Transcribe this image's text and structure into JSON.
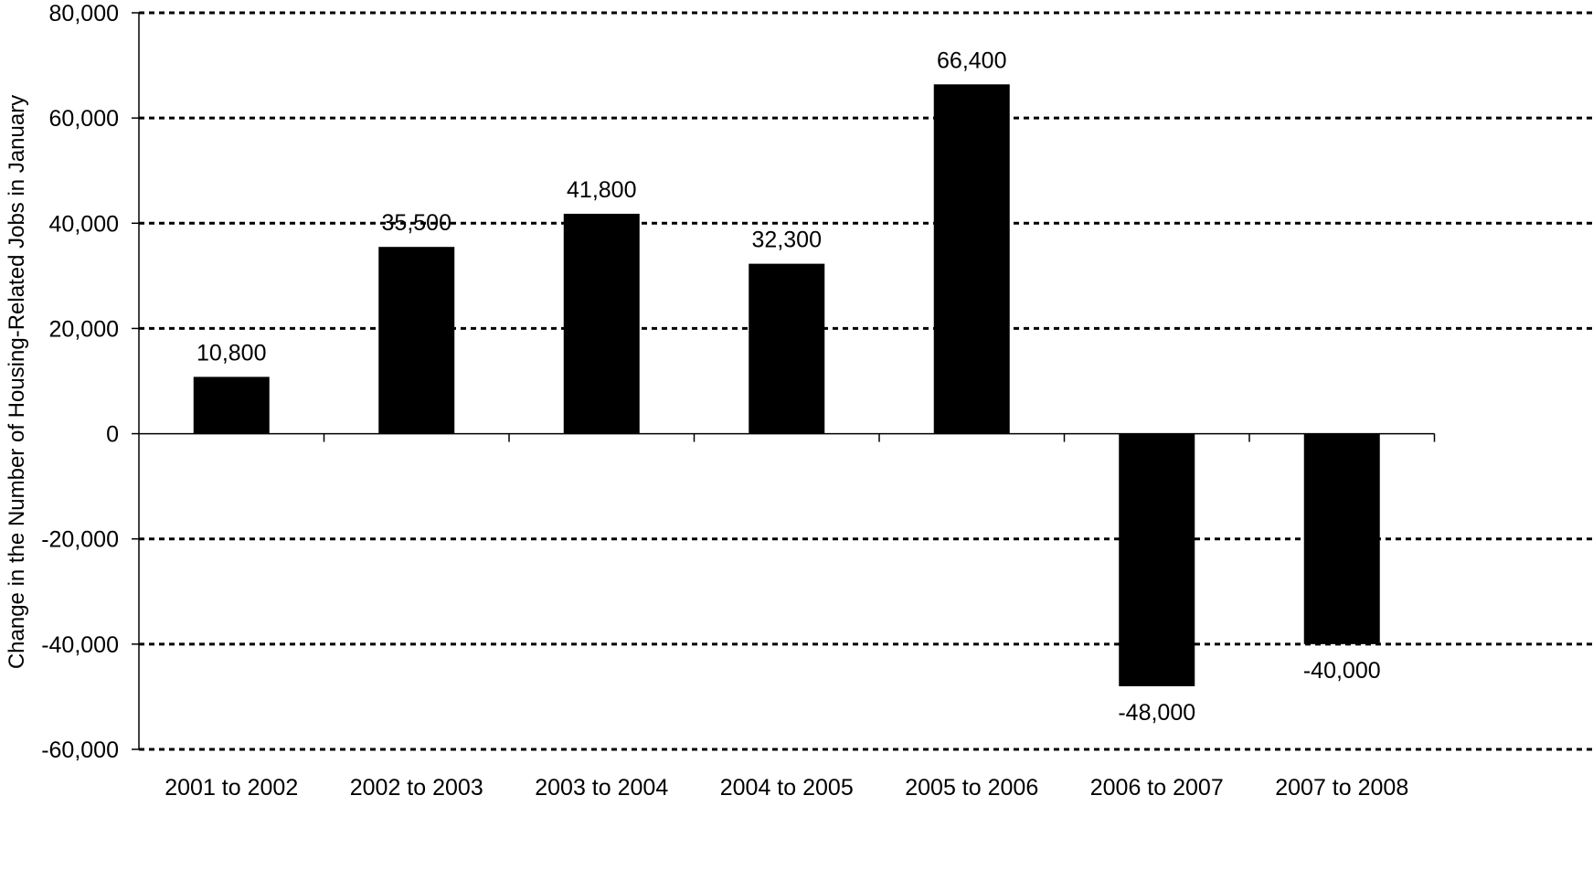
{
  "chart_data": {
    "type": "bar",
    "title": "",
    "xlabel": "",
    "ylabel": "Change in the Number of Housing-Related Jobs in January",
    "categories": [
      "2001 to 2002",
      "2002 to 2003",
      "2003 to 2004",
      "2004 to 2005",
      "2005 to 2006",
      "2006 to 2007",
      "2007 to 2008"
    ],
    "values": [
      10800,
      35500,
      41800,
      32300,
      66400,
      -48000,
      -40000
    ],
    "data_labels": [
      "10,800",
      "35,500",
      "41,800",
      "32,300",
      "66,400",
      "-48,000",
      "-40,000"
    ],
    "ylim": [
      -60000,
      80000
    ],
    "yticks": [
      80000,
      60000,
      40000,
      20000,
      0,
      -20000,
      -40000,
      -60000
    ],
    "ytick_labels": [
      "80,000",
      "60,000",
      "40,000",
      "20,000",
      "0",
      "-20,000",
      "-40,000",
      "-60,000"
    ],
    "grid": "horizontal dashed",
    "legend": "none",
    "colors": {
      "bar": "#000000",
      "grid": "#000000",
      "axis": "#000000"
    }
  }
}
